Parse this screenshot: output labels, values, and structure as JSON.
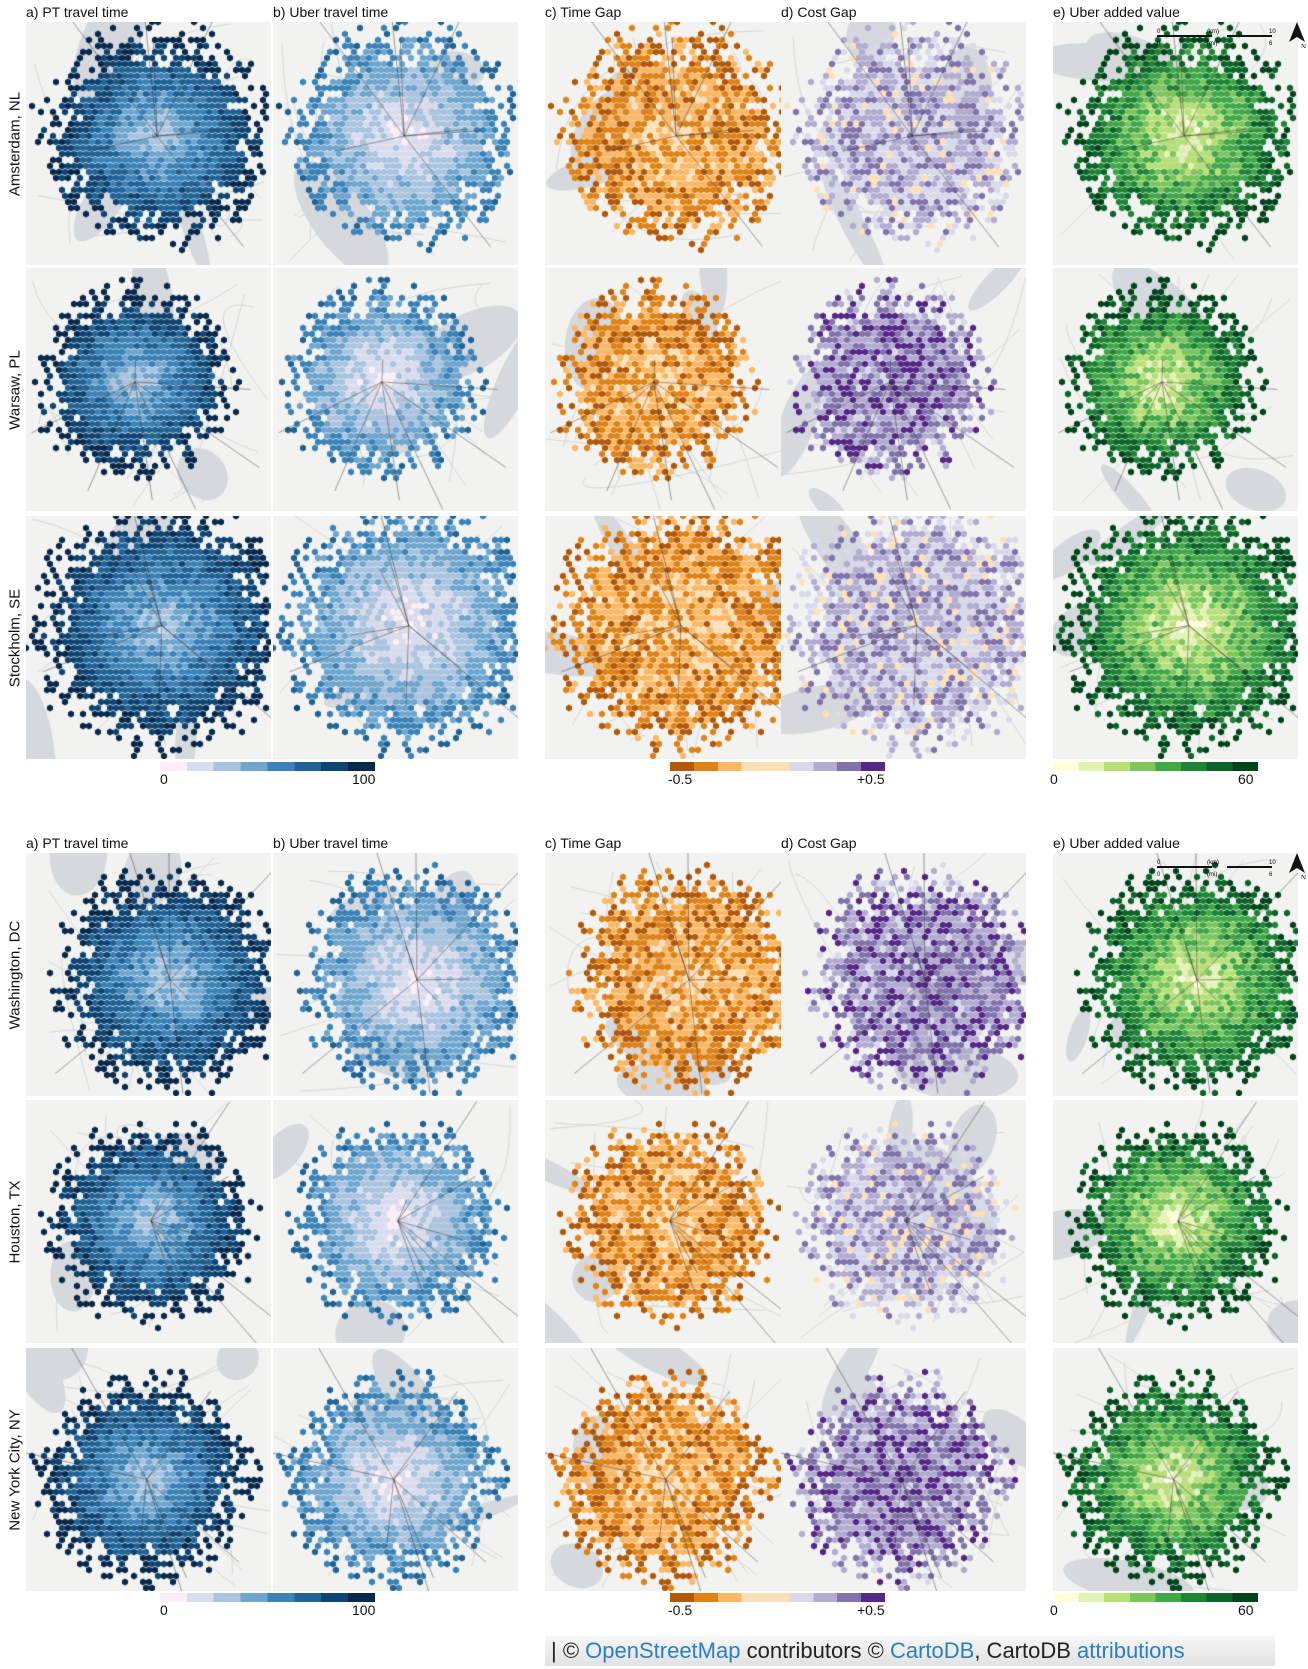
{
  "panels": [
    {
      "column_titles": [
        "a) PT travel time",
        "b) Uber travel time",
        "c) Time Gap",
        "d) Cost Gap",
        "e) Uber added value"
      ],
      "cities": [
        "Amsterdam, NL",
        "Warsaw, PL",
        "Stockholm, SE"
      ],
      "colorbars": {
        "travel_time": {
          "min_label": "0",
          "max_label": "100"
        },
        "gap": {
          "min_label": "-0.5",
          "max_label": "+0.5"
        },
        "added_value": {
          "min_label": "0",
          "max_label": "60"
        }
      },
      "scale_bar": {
        "km_unit": "(km)",
        "mi_unit": "(mi)",
        "zero": "0",
        "km_max": "10",
        "mi_max": "6"
      },
      "north_label": "N"
    },
    {
      "column_titles": [
        "a) PT travel time",
        "b) Uber travel time",
        "c) Time Gap",
        "d) Cost Gap",
        "e) Uber added value"
      ],
      "cities": [
        "Washington, DC",
        "Houston, TX",
        "New York City, NY"
      ],
      "colorbars": {
        "travel_time": {
          "min_label": "0",
          "max_label": "100"
        },
        "gap": {
          "min_label": "-0.5",
          "max_label": "+0.5"
        },
        "added_value": {
          "min_label": "0",
          "max_label": "60"
        }
      },
      "scale_bar": {
        "km_unit": "(km)",
        "mi_unit": "(mi)",
        "zero": "0",
        "km_max": "10",
        "mi_max": "6"
      },
      "north_label": "N"
    }
  ],
  "attribution": {
    "prefix": "| © ",
    "osm_link": "OpenStreetMap",
    "middle": " contributors © ",
    "carto_link": "CartoDB",
    "after": ", CartoDB ",
    "attr_link": "attributions"
  },
  "colors": {
    "travel_time_scale": [
      "#fbeef6",
      "#d9dcee",
      "#a9c4e0",
      "#6ea6cf",
      "#3a82b8",
      "#1f6397",
      "#0e4473",
      "#08294d"
    ],
    "time_gap_scale": [
      "#b35806",
      "#e08214",
      "#fdb863",
      "#fee0b6"
    ],
    "cost_gap_scale": [
      "#fee0b6",
      "#d8daeb",
      "#b2abd2",
      "#8073ac",
      "#542788"
    ],
    "added_value_scale": [
      "#ffffd9",
      "#e3f3b1",
      "#b7e075",
      "#7bc75b",
      "#41a846",
      "#1e8535",
      "#0b6428",
      "#00441b"
    ],
    "map_background": "#f2f3f1",
    "water": "#d5d8dc"
  }
}
